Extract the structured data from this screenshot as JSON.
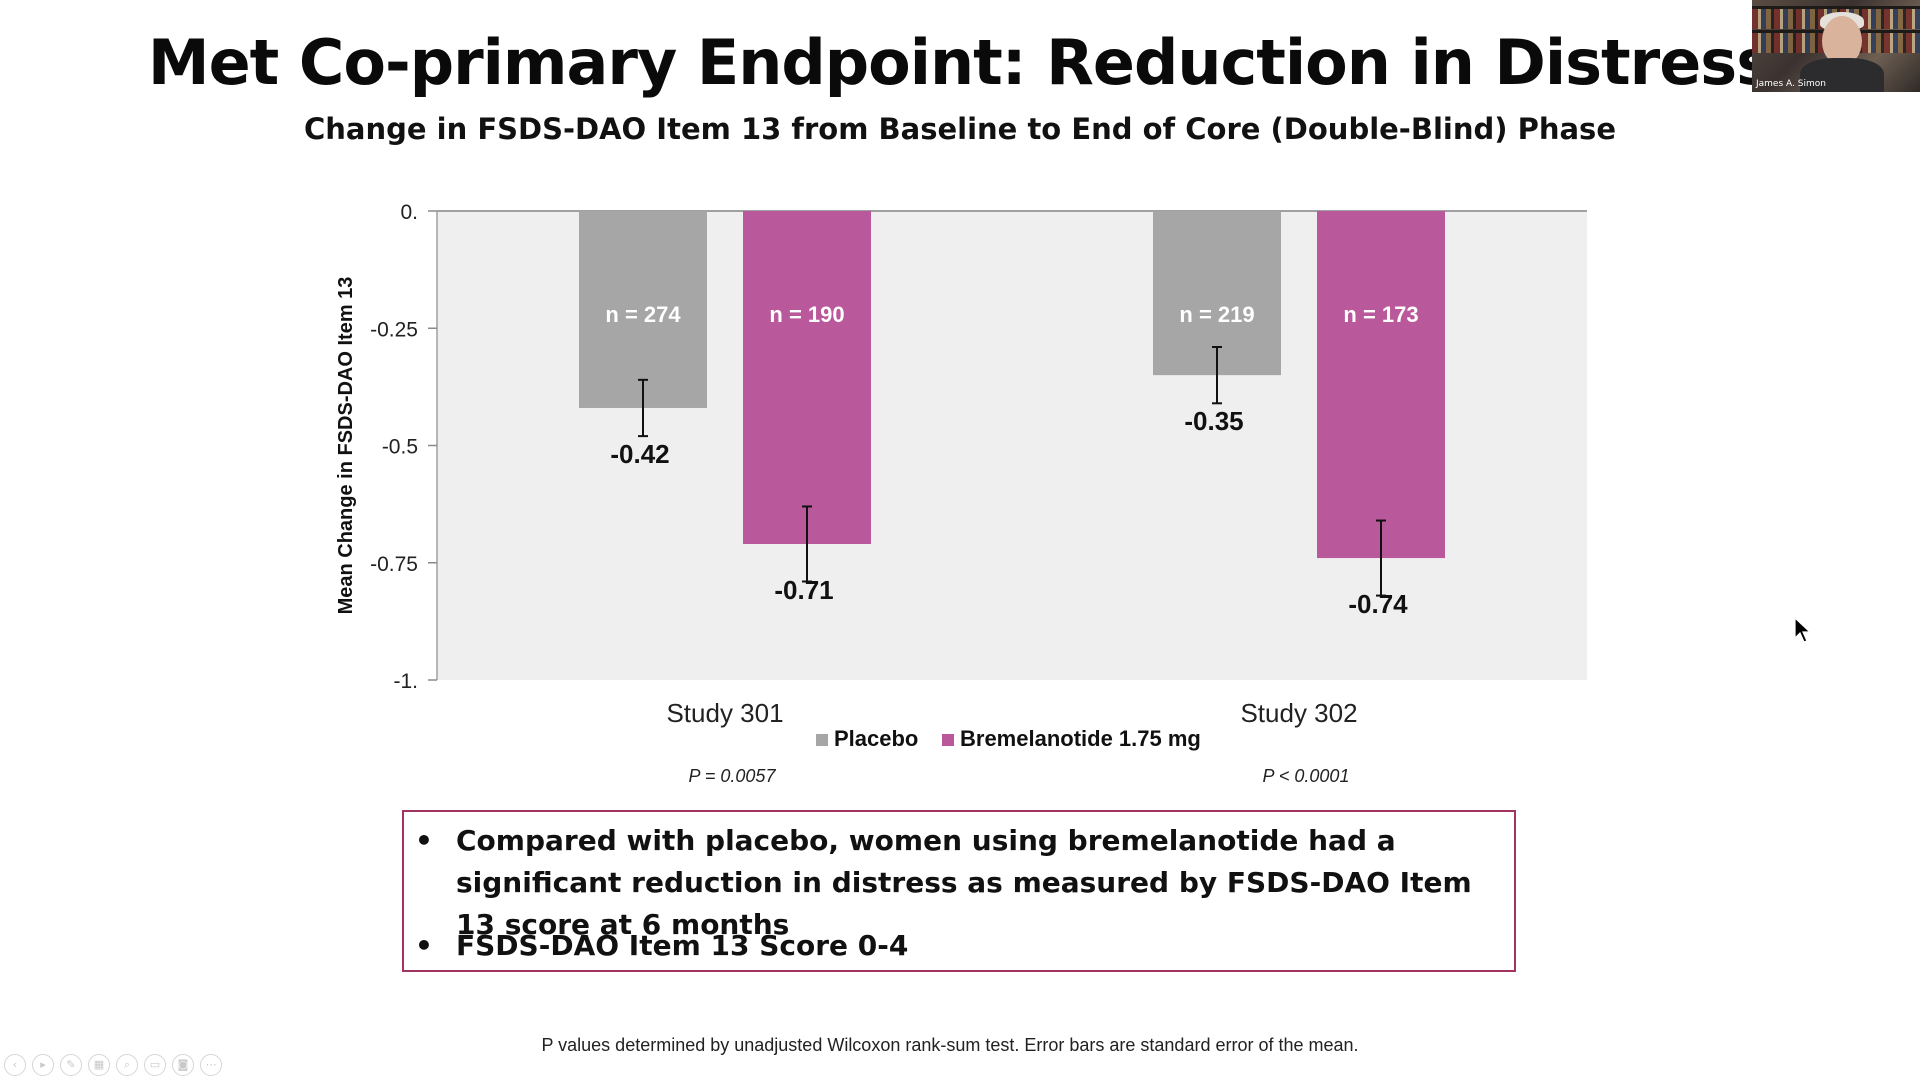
{
  "slide": {
    "title": "Met Co-primary Endpoint: Reduction in Distress",
    "subtitle": "Change in FSDS-DAO Item 13 from Baseline to End of Core (Double-Blind) Phase",
    "callout_bullets": [
      {
        "bullet": "•",
        "text": "Compared with placebo, women using bremelanotide had a significant reduction in distress as measured by FSDS-DAO Item 13 score at 6 months"
      },
      {
        "bullet": "•",
        "text": "FSDS-DAO Item 13 Score 0-4"
      }
    ],
    "footnote": "P values determined by unadjusted Wilcoxon rank-sum test. Error bars are standard error of the mean."
  },
  "webcam": {
    "name": "James A. Simon"
  },
  "colors": {
    "placebo": "#a6a6a6",
    "bremelanotide": "#b9589a",
    "plot_bg": "#efefef",
    "callout_border": "#a0335f"
  },
  "chart_data": {
    "type": "bar",
    "categories": [
      "Study 301",
      "Study 302"
    ],
    "series": [
      {
        "name": "Placebo",
        "values": [
          -0.42,
          -0.35
        ],
        "n_labels": [
          "n = 274",
          "n = 219"
        ],
        "value_labels": [
          "-0.42",
          "-0.35"
        ],
        "error": [
          0.06,
          0.06
        ]
      },
      {
        "name": "Bremelanotide 1.75 mg",
        "values": [
          -0.71,
          -0.74
        ],
        "n_labels": [
          "n = 190",
          "n = 173"
        ],
        "value_labels": [
          "-0.71",
          "-0.74"
        ],
        "error": [
          0.08,
          0.08
        ]
      }
    ],
    "p_values": [
      "P = 0.0057",
      "P < 0.0001"
    ],
    "ylabel": "Mean Change in FSDS-DAO Item 13",
    "xlabel": "",
    "ylim": [
      -1,
      0
    ],
    "yticks": [
      0,
      -0.25,
      -0.5,
      -0.75,
      -1
    ],
    "ytick_labels": [
      "0.",
      "-0.25",
      "-0.5",
      "-0.75",
      "-1."
    ],
    "legend_position": "bottom",
    "grid": false
  }
}
